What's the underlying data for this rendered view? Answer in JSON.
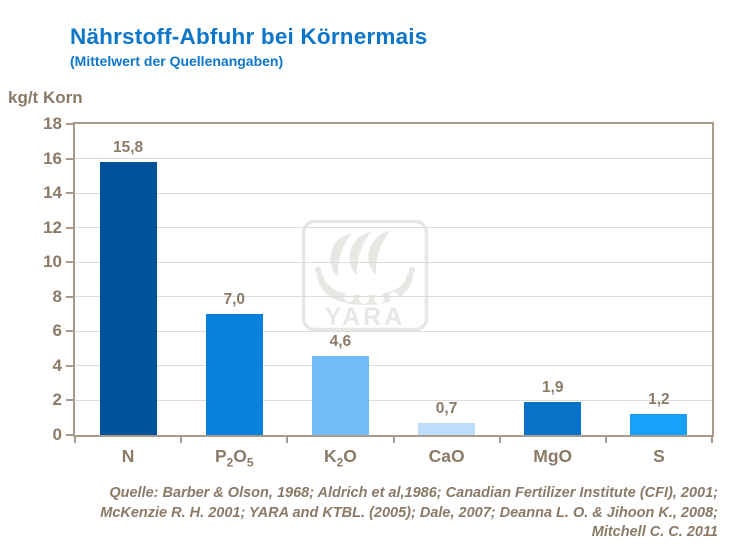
{
  "header": {
    "title": "Nährstoff-Abfuhr bei Körnermais",
    "subtitle": "(Mittelwert der Quellenangaben)"
  },
  "axis_unit_label": "kg/t Korn",
  "watermark_text": "YARA",
  "source": {
    "lines": [
      "Quelle: Barber & Olson, 1968; Aldrich et al,1986; Canadian Fertilizer Institute (CFI), 2001;",
      "McKenzie R. H. 2001; YARA and KTBL. (2005); Dale, 2007; Deanna L. O. & Jihoon K.,  2008;",
      "Mitchell C. C. 2011"
    ]
  },
  "colors": {
    "title_blue": "#0D76C9",
    "text_brown": "#8B7A67",
    "axis_frame": "#A89B8D",
    "gridline": "#DCDCDC",
    "watermark_gray": "#E9E7E4"
  },
  "chart_data": {
    "type": "bar",
    "title": "Nährstoff-Abfuhr bei Körnermais",
    "subtitle": "(Mittelwert der Quellenangaben)",
    "categories": [
      "N",
      "P2O5",
      "K2O",
      "CaO",
      "MgO",
      "S"
    ],
    "values": [
      15.8,
      7.0,
      4.6,
      0.7,
      1.9,
      1.2
    ],
    "value_labels": [
      "15,8",
      "7,0",
      "4,6",
      "0,7",
      "1,9",
      "1,2"
    ],
    "bar_colors": [
      "#02519B",
      "#0881DC",
      "#70BDF8",
      "#BCDEFA",
      "#0973C9",
      "#19A0F8"
    ],
    "ylabel": "kg/t Korn",
    "xlabel": "",
    "ylim": [
      0,
      18
    ],
    "ytick_step": 2,
    "grid": "horizontal",
    "legend": "none"
  }
}
